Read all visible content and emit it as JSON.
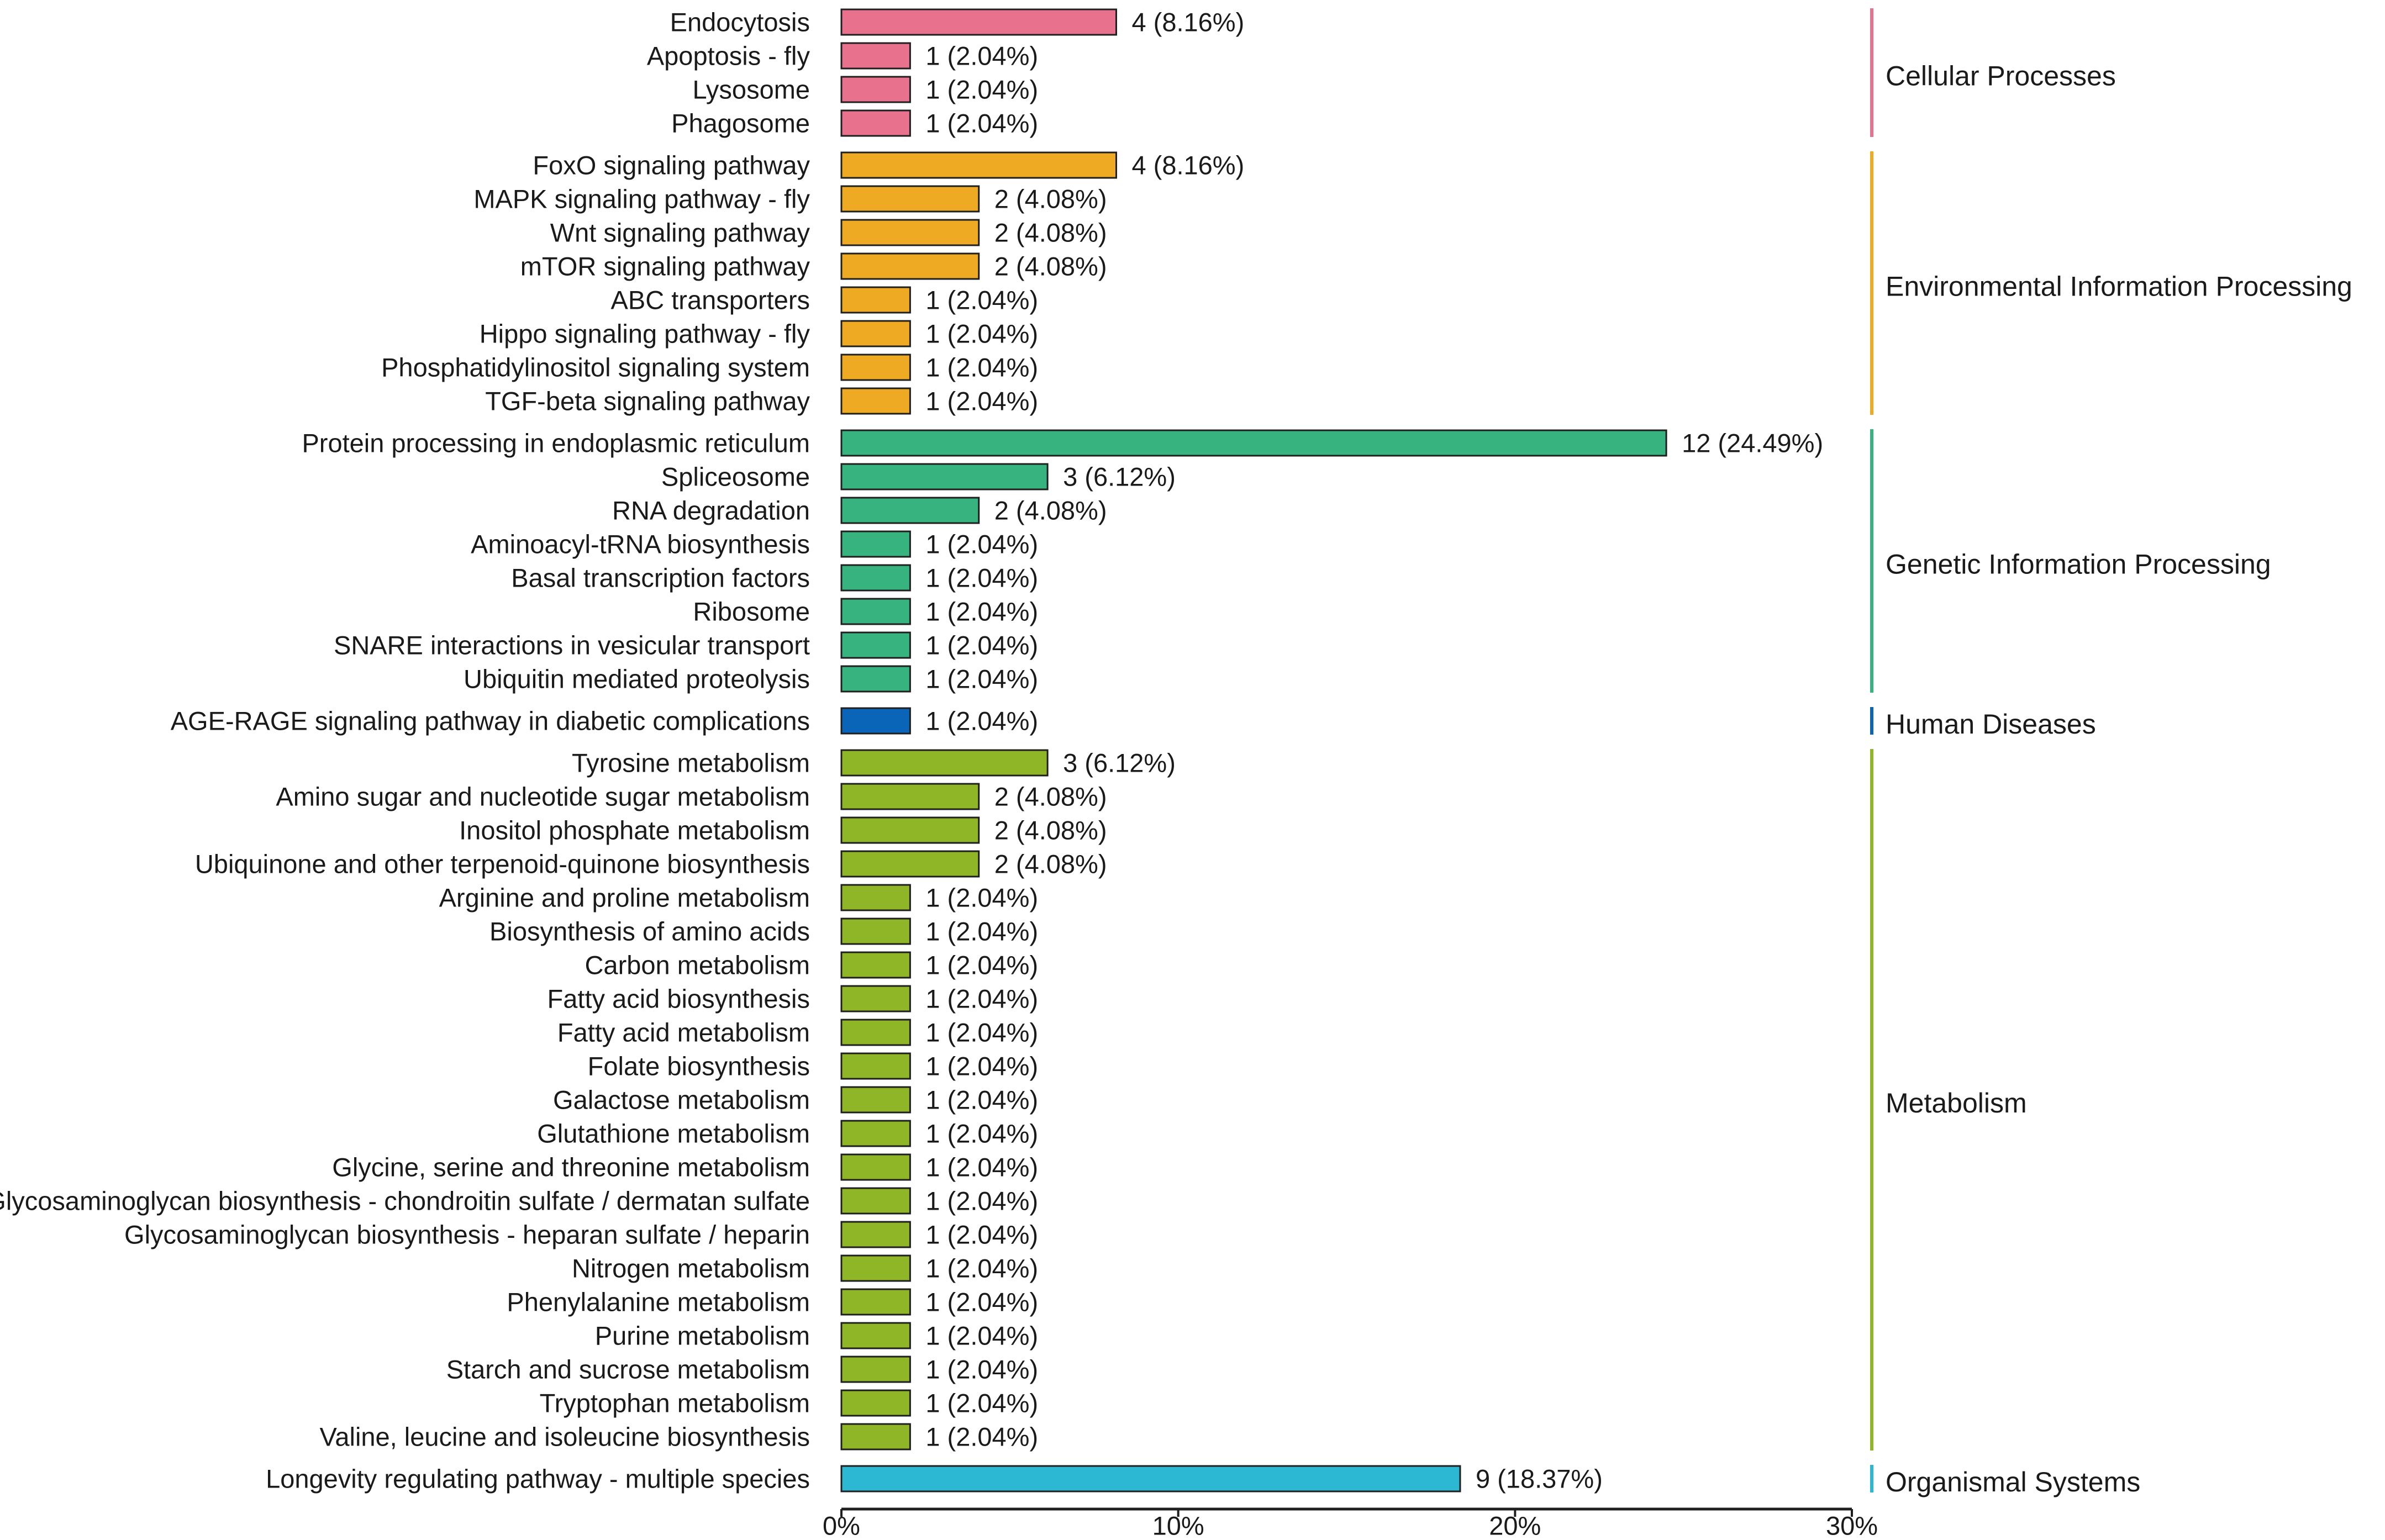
{
  "chart_data": {
    "type": "bar",
    "orientation": "horizontal",
    "title": "",
    "xlabel": "",
    "ylabel": "",
    "xlim": [
      0,
      30
    ],
    "x_ticks": [
      "0%",
      "10%",
      "20%",
      "30%"
    ],
    "grid": false,
    "groups": [
      {
        "name": "Cellular Processes",
        "color": "#e8718d",
        "items": [
          {
            "category": "Endocytosis",
            "percent": 8.16,
            "label": "4 (8.16%)"
          },
          {
            "category": "Apoptosis - fly",
            "percent": 2.04,
            "label": "1 (2.04%)"
          },
          {
            "category": "Lysosome",
            "percent": 2.04,
            "label": "1 (2.04%)"
          },
          {
            "category": "Phagosome",
            "percent": 2.04,
            "label": "1 (2.04%)"
          }
        ]
      },
      {
        "name": "Environmental Information Processing",
        "color": "#eeaa23",
        "items": [
          {
            "category": "FoxO signaling pathway",
            "percent": 8.16,
            "label": "4 (8.16%)"
          },
          {
            "category": "MAPK signaling pathway - fly",
            "percent": 4.08,
            "label": "2 (4.08%)"
          },
          {
            "category": "Wnt signaling pathway",
            "percent": 4.08,
            "label": "2 (4.08%)"
          },
          {
            "category": "mTOR signaling pathway",
            "percent": 4.08,
            "label": "2 (4.08%)"
          },
          {
            "category": "ABC transporters",
            "percent": 2.04,
            "label": "1 (2.04%)"
          },
          {
            "category": "Hippo signaling pathway - fly",
            "percent": 2.04,
            "label": "1 (2.04%)"
          },
          {
            "category": "Phosphatidylinositol signaling system",
            "percent": 2.04,
            "label": "1 (2.04%)"
          },
          {
            "category": "TGF-beta signaling pathway",
            "percent": 2.04,
            "label": "1 (2.04%)"
          }
        ]
      },
      {
        "name": "Genetic Information Processing",
        "color": "#36b37e",
        "items": [
          {
            "category": "Protein processing in endoplasmic reticulum",
            "percent": 24.49,
            "label": "12 (24.49%)"
          },
          {
            "category": "Spliceosome",
            "percent": 6.12,
            "label": "3 (6.12%)"
          },
          {
            "category": "RNA degradation",
            "percent": 4.08,
            "label": "2 (4.08%)"
          },
          {
            "category": "Aminoacyl-tRNA biosynthesis",
            "percent": 2.04,
            "label": "1 (2.04%)"
          },
          {
            "category": "Basal transcription factors",
            "percent": 2.04,
            "label": "1 (2.04%)"
          },
          {
            "category": "Ribosome",
            "percent": 2.04,
            "label": "1 (2.04%)"
          },
          {
            "category": "SNARE interactions in vesicular transport",
            "percent": 2.04,
            "label": "1 (2.04%)"
          },
          {
            "category": "Ubiquitin mediated proteolysis",
            "percent": 2.04,
            "label": "1 (2.04%)"
          }
        ]
      },
      {
        "name": "Human Diseases",
        "color": "#0a64b8",
        "items": [
          {
            "category": "AGE-RAGE signaling pathway in diabetic complications",
            "percent": 2.04,
            "label": "1 (2.04%)"
          }
        ]
      },
      {
        "name": "Metabolism",
        "color": "#8fb626",
        "items": [
          {
            "category": "Tyrosine metabolism",
            "percent": 6.12,
            "label": "3 (6.12%)"
          },
          {
            "category": "Amino sugar and nucleotide sugar metabolism",
            "percent": 4.08,
            "label": "2 (4.08%)"
          },
          {
            "category": "Inositol phosphate metabolism",
            "percent": 4.08,
            "label": "2 (4.08%)"
          },
          {
            "category": "Ubiquinone and other terpenoid-quinone biosynthesis",
            "percent": 4.08,
            "label": "2 (4.08%)"
          },
          {
            "category": "Arginine and proline metabolism",
            "percent": 2.04,
            "label": "1 (2.04%)"
          },
          {
            "category": "Biosynthesis of amino acids",
            "percent": 2.04,
            "label": "1 (2.04%)"
          },
          {
            "category": "Carbon metabolism",
            "percent": 2.04,
            "label": "1 (2.04%)"
          },
          {
            "category": "Fatty acid biosynthesis",
            "percent": 2.04,
            "label": "1 (2.04%)"
          },
          {
            "category": "Fatty acid metabolism",
            "percent": 2.04,
            "label": "1 (2.04%)"
          },
          {
            "category": "Folate biosynthesis",
            "percent": 2.04,
            "label": "1 (2.04%)"
          },
          {
            "category": "Galactose metabolism",
            "percent": 2.04,
            "label": "1 (2.04%)"
          },
          {
            "category": "Glutathione metabolism",
            "percent": 2.04,
            "label": "1 (2.04%)"
          },
          {
            "category": "Glycine, serine and threonine metabolism",
            "percent": 2.04,
            "label": "1 (2.04%)"
          },
          {
            "category": "Glycosaminoglycan biosynthesis - chondroitin sulfate / dermatan sulfate",
            "percent": 2.04,
            "label": "1 (2.04%)"
          },
          {
            "category": "Glycosaminoglycan biosynthesis - heparan sulfate / heparin",
            "percent": 2.04,
            "label": "1 (2.04%)"
          },
          {
            "category": "Nitrogen metabolism",
            "percent": 2.04,
            "label": "1 (2.04%)"
          },
          {
            "category": "Phenylalanine metabolism",
            "percent": 2.04,
            "label": "1 (2.04%)"
          },
          {
            "category": "Purine metabolism",
            "percent": 2.04,
            "label": "1 (2.04%)"
          },
          {
            "category": "Starch and sucrose metabolism",
            "percent": 2.04,
            "label": "1 (2.04%)"
          },
          {
            "category": "Tryptophan metabolism",
            "percent": 2.04,
            "label": "1 (2.04%)"
          },
          {
            "category": "Valine, leucine and isoleucine biosynthesis",
            "percent": 2.04,
            "label": "1 (2.04%)"
          }
        ]
      },
      {
        "name": "Organismal Systems",
        "color": "#2cb8d3",
        "items": [
          {
            "category": "Longevity regulating pathway - multiple species",
            "percent": 18.37,
            "label": "9 (18.37%)"
          }
        ]
      }
    ]
  }
}
